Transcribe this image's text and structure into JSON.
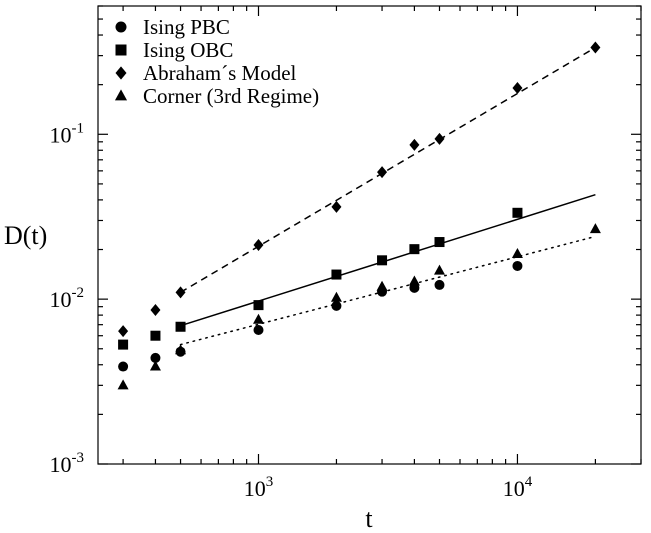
{
  "chart_data": {
    "type": "scatter",
    "xlabel": "t",
    "ylabel": "D(t)",
    "xscale": "log",
    "yscale": "log",
    "xlim": [
      240,
      30000
    ],
    "ylim": [
      0.001,
      0.6
    ],
    "x_ticks": [
      {
        "value": 1000,
        "base": "10",
        "exp": "3"
      },
      {
        "value": 10000,
        "base": "10",
        "exp": "4"
      }
    ],
    "y_ticks": [
      {
        "value": 0.001,
        "base": "10",
        "exp": "-3"
      },
      {
        "value": 0.01,
        "base": "10",
        "exp": "-2"
      },
      {
        "value": 0.1,
        "base": "10",
        "exp": "-1"
      }
    ],
    "legend_position": "top-left",
    "grid": false,
    "series": [
      {
        "name": "Ising PBC",
        "marker": "circle",
        "points": [
          [
            300,
            0.0039
          ],
          [
            400,
            0.0044
          ],
          [
            500,
            0.0048
          ],
          [
            1000,
            0.0065
          ],
          [
            2000,
            0.0091
          ],
          [
            3000,
            0.0111
          ],
          [
            4000,
            0.0117
          ],
          [
            5000,
            0.0122
          ],
          [
            10000,
            0.0159
          ]
        ]
      },
      {
        "name": "Ising OBC",
        "marker": "square",
        "points": [
          [
            300,
            0.0053
          ],
          [
            400,
            0.006
          ],
          [
            500,
            0.0068
          ],
          [
            1000,
            0.0092
          ],
          [
            2000,
            0.0141
          ],
          [
            3000,
            0.0172
          ],
          [
            4000,
            0.0201
          ],
          [
            5000,
            0.0222
          ],
          [
            10000,
            0.0334
          ]
        ]
      },
      {
        "name": "Abraham´s Model",
        "marker": "diamond",
        "points": [
          [
            300,
            0.0064
          ],
          [
            400,
            0.0086
          ],
          [
            500,
            0.011
          ],
          [
            1000,
            0.0213
          ],
          [
            2000,
            0.0363
          ],
          [
            3000,
            0.0589
          ],
          [
            4000,
            0.0863
          ],
          [
            5000,
            0.0938
          ],
          [
            10000,
            0.191
          ],
          [
            20000,
            0.336
          ]
        ]
      },
      {
        "name": "Corner (3rd Regime)",
        "marker": "triangle",
        "points": [
          [
            300,
            0.003
          ],
          [
            400,
            0.0039
          ],
          [
            500,
            0.0049
          ],
          [
            1000,
            0.0075
          ],
          [
            2000,
            0.0102
          ],
          [
            3000,
            0.0119
          ],
          [
            4000,
            0.0128
          ],
          [
            5000,
            0.0149
          ],
          [
            10000,
            0.0188
          ],
          [
            20000,
            0.0266
          ]
        ]
      }
    ],
    "fit_lines": [
      {
        "style": "dashed",
        "from": [
          500,
          0.011
        ],
        "to": [
          20000,
          0.336
        ]
      },
      {
        "style": "solid",
        "from": [
          500,
          0.0069
        ],
        "to": [
          20000,
          0.043
        ]
      },
      {
        "style": "dotted",
        "from": [
          500,
          0.0053
        ],
        "to": [
          20000,
          0.024
        ]
      }
    ]
  }
}
